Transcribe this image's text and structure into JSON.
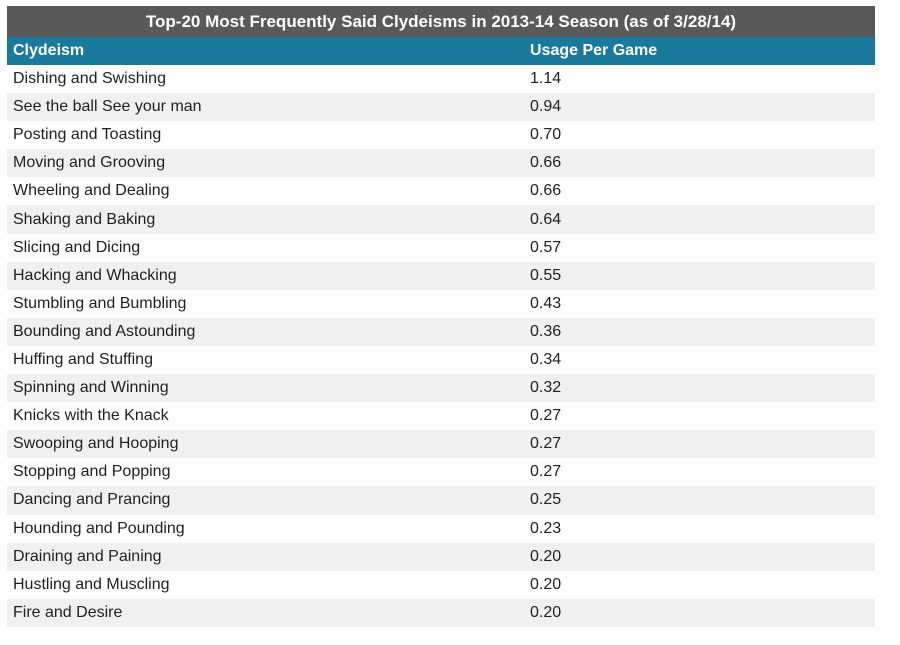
{
  "chart_data": {
    "type": "table",
    "title": "Top-20 Most Frequently Said Clydeisms in 2013-14 Season (as of 3/28/14)",
    "columns": [
      "Clydeism",
      "Usage Per Game"
    ],
    "rows": [
      {
        "name": "Dishing and Swishing",
        "value": "1.14"
      },
      {
        "name": "See the ball See your man",
        "value": "0.94"
      },
      {
        "name": "Posting and Toasting",
        "value": "0.70"
      },
      {
        "name": "Moving and Grooving",
        "value": "0.66"
      },
      {
        "name": "Wheeling and Dealing",
        "value": "0.66"
      },
      {
        "name": "Shaking and Baking",
        "value": "0.64"
      },
      {
        "name": "Slicing and Dicing",
        "value": "0.57"
      },
      {
        "name": "Hacking and Whacking",
        "value": "0.55"
      },
      {
        "name": "Stumbling and Bumbling",
        "value": "0.43"
      },
      {
        "name": "Bounding and Astounding",
        "value": "0.36"
      },
      {
        "name": "Huffing and Stuffing",
        "value": "0.34"
      },
      {
        "name": "Spinning and Winning",
        "value": "0.32"
      },
      {
        "name": "Knicks with the Knack",
        "value": "0.27"
      },
      {
        "name": "Swooping and Hooping",
        "value": "0.27"
      },
      {
        "name": "Stopping and Popping",
        "value": "0.27"
      },
      {
        "name": "Dancing and Prancing",
        "value": "0.25"
      },
      {
        "name": "Hounding and Pounding",
        "value": "0.23"
      },
      {
        "name": "Draining and Paining",
        "value": "0.20"
      },
      {
        "name": "Hustling and Muscling",
        "value": "0.20"
      },
      {
        "name": "Fire and Desire",
        "value": "0.20"
      }
    ]
  },
  "colors": {
    "title_background": "#595959",
    "header_background": "#1a7a9c",
    "stripe": "#f0f0f0"
  }
}
